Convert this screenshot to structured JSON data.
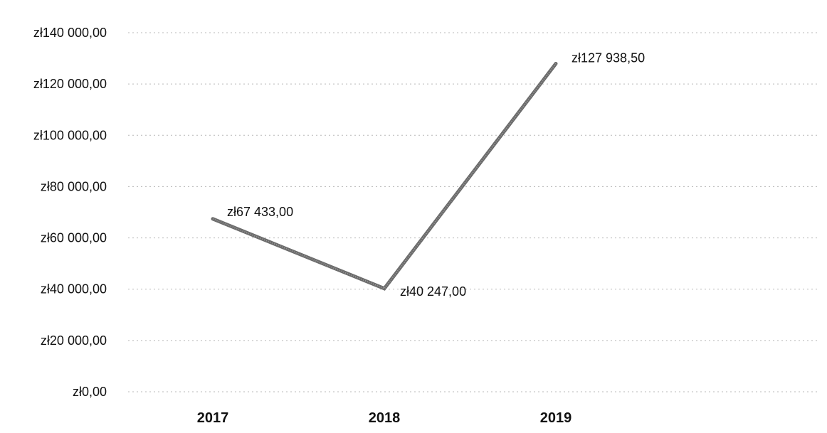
{
  "chart_data": {
    "type": "line",
    "title": "",
    "xlabel": "",
    "ylabel": "",
    "categories": [
      "2017",
      "2018",
      "2019"
    ],
    "series": [
      {
        "values": [
          67433.0,
          40247.0,
          127938.5
        ]
      }
    ],
    "data_labels": [
      "zł67 433,00",
      "zł40 247,00",
      "zł127 938,50"
    ],
    "ylim": [
      0,
      140000
    ],
    "y_ticks": [
      0,
      20000,
      40000,
      60000,
      80000,
      100000,
      120000,
      140000
    ],
    "y_tick_labels": [
      "zł0,00",
      "zł20 000,00",
      "zł40 000,00",
      "zł60 000,00",
      "zł80 000,00",
      "zł100 000,00",
      "zł120 000,00",
      "zł140 000,00"
    ],
    "grid": true,
    "legend": "none",
    "line_color": "#6b6b6b"
  }
}
